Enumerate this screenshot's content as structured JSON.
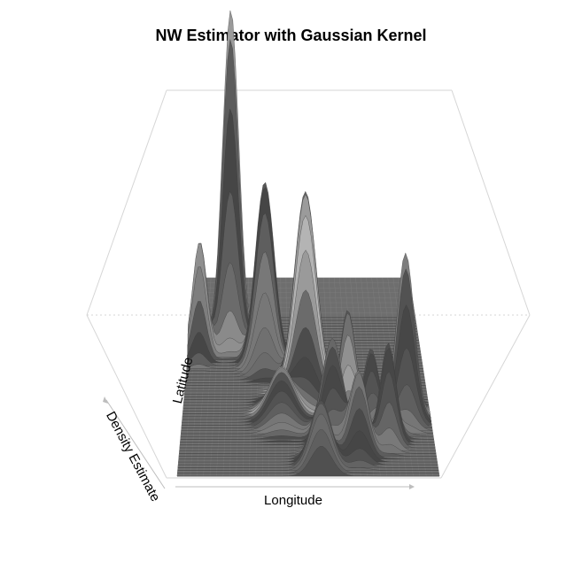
{
  "chart_data": {
    "type": "surface",
    "title": "NW Estimator with Gaussian Kernel",
    "xlabel": "Longitude",
    "ylabel": "Latitude",
    "zlabel": "Density Estimate",
    "shading": "grayscale",
    "box": true,
    "ticks": false,
    "peaks": [
      {
        "x": 0.18,
        "y": 0.7,
        "height": 1.0,
        "spread": 0.035
      },
      {
        "x": 0.33,
        "y": 0.58,
        "height": 0.55,
        "spread": 0.04
      },
      {
        "x": 0.05,
        "y": 0.62,
        "height": 0.35,
        "spread": 0.03
      },
      {
        "x": 0.5,
        "y": 0.45,
        "height": 0.6,
        "spread": 0.045
      },
      {
        "x": 0.67,
        "y": 0.35,
        "height": 0.3,
        "spread": 0.03
      },
      {
        "x": 0.76,
        "y": 0.28,
        "height": 0.22,
        "spread": 0.03
      },
      {
        "x": 0.9,
        "y": 0.3,
        "height": 0.5,
        "spread": 0.035
      },
      {
        "x": 0.6,
        "y": 0.2,
        "height": 0.3,
        "spread": 0.04
      },
      {
        "x": 0.7,
        "y": 0.12,
        "height": 0.25,
        "spread": 0.035
      },
      {
        "x": 0.55,
        "y": 0.05,
        "height": 0.2,
        "spread": 0.04
      },
      {
        "x": 0.82,
        "y": 0.18,
        "height": 0.3,
        "spread": 0.03
      },
      {
        "x": 0.4,
        "y": 0.3,
        "height": 0.15,
        "spread": 0.05
      }
    ]
  }
}
